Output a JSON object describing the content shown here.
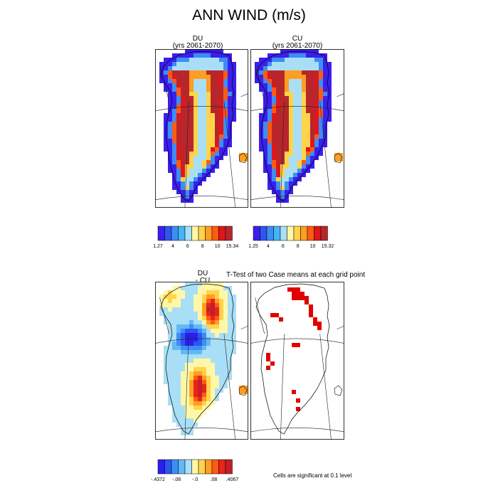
{
  "figure": {
    "title": "ANN WIND (m/s)",
    "ttest_title": "T-Test of two Case means at each grid point",
    "significance_note": "Cells are significant at 0.1 level"
  },
  "panels": {
    "du": {
      "line1": "DU",
      "line2": "(yrs 2061-2070)"
    },
    "cu": {
      "line1": "CU",
      "line2": "(yrs 2061-2070)"
    },
    "diff": {
      "line1": "DU",
      "line2": "- CU"
    }
  },
  "chart_data": [
    {
      "type": "heatmap",
      "name": "DU",
      "colorbar": {
        "colors": [
          "#3b1fef",
          "#2f55f0",
          "#3c8ef4",
          "#44b5f6",
          "#a9dff6",
          "#fff7a8",
          "#ffd34a",
          "#ff9d22",
          "#ff5a16",
          "#e0161a",
          "#b8262c"
        ],
        "labels": [
          "1.27",
          "4",
          "6",
          "8",
          "10",
          "15.34"
        ]
      }
    },
    {
      "type": "heatmap",
      "name": "CU",
      "colorbar": {
        "colors": [
          "#3b1fef",
          "#2f55f0",
          "#3c8ef4",
          "#44b5f6",
          "#a9dff6",
          "#fff7a8",
          "#ffd34a",
          "#ff9d22",
          "#ff5a16",
          "#e0161a",
          "#b8262c"
        ],
        "labels": [
          "1.25",
          "4",
          "6",
          "8",
          "10",
          "15.32"
        ]
      }
    },
    {
      "type": "heatmap",
      "name": "DU - CU",
      "colorbar": {
        "colors": [
          "#2a1ff0",
          "#2f55f0",
          "#3c8ef4",
          "#62b9f6",
          "#a9dff6",
          "#fff7a8",
          "#ffd34a",
          "#ff9d22",
          "#ff5a16",
          "#e8241c",
          "#c41f26"
        ],
        "labels": [
          "-.4372",
          "-.08",
          "-.0",
          ".08",
          ".4067"
        ]
      }
    },
    {
      "type": "heatmap",
      "name": "T-Test significance",
      "colorbar": {
        "colors": [
          "#e00000"
        ],
        "labels": []
      }
    }
  ]
}
